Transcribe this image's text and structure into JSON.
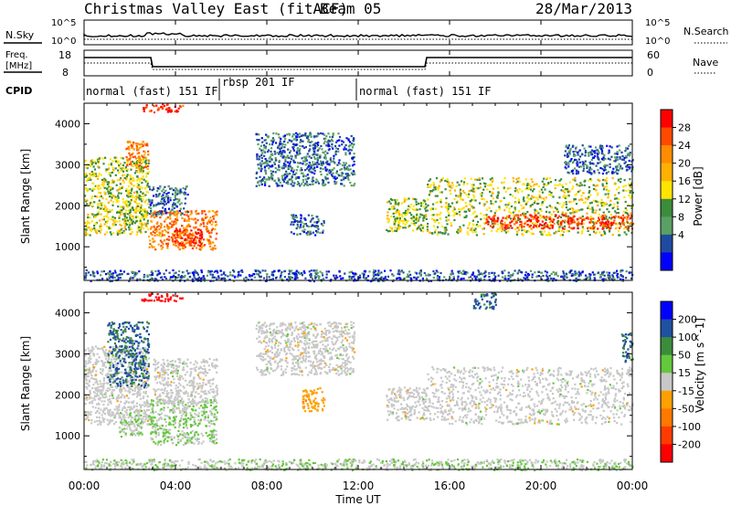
{
  "header": {
    "title": "Christmas Valley East (fitACF)",
    "beam": "Beam 05",
    "date": "28/Mar/2013"
  },
  "top_panels": {
    "nsky": {
      "label": "N.Sky",
      "ticks": [
        "10^5",
        "10^0"
      ]
    },
    "nsearch": {
      "label": "N.Search",
      "ticks": [
        "10^5",
        "10^0"
      ]
    },
    "freq": {
      "label_lines": [
        "Freq.",
        "[MHz]"
      ],
      "ticks": [
        "18",
        "8"
      ]
    },
    "nave": {
      "label": "Nave",
      "ticks": [
        "60",
        "0"
      ]
    },
    "cpid": {
      "label": "CPID",
      "segments": [
        {
          "name": "normal (fast) 151 IF",
          "start": 0.0,
          "end": 6.0
        },
        {
          "name": "rbsp 201 IF",
          "start": 6.0,
          "end": 12.0
        },
        {
          "name": "normal (fast) 151 IF",
          "start": 12.0,
          "end": 24.0
        }
      ]
    }
  },
  "power_colorbar": {
    "label": "Power [dB]",
    "ticks": [
      "28",
      "24",
      "20",
      "16",
      "12",
      "8",
      "4"
    ],
    "colors": [
      "#ff0000",
      "#ff4a00",
      "#ff8c00",
      "#ffb000",
      "#ffe400",
      "#3c8c3c",
      "#5aa064",
      "#1e4ba0",
      "#0000ff"
    ]
  },
  "velocity_colorbar": {
    "label": "Velocity [m s^-1]",
    "ticks": [
      "200",
      "100",
      "50",
      "15",
      "-15",
      "-50",
      "-100",
      "-200"
    ],
    "colors": [
      "#0000ff",
      "#2050a0",
      "#3c8c3c",
      "#64c83c",
      "#c8c8c8",
      "#ffa000",
      "#ff7800",
      "#ff3c00",
      "#ff0000"
    ]
  },
  "x_axis": {
    "label": "Time UT",
    "ticks": [
      "00:00",
      "04:00",
      "08:00",
      "12:00",
      "16:00",
      "20:00",
      "00:00"
    ]
  },
  "chart_data": [
    {
      "type": "heatmap",
      "panel": "power",
      "ylabel": "Slant Range [km]",
      "xlabel": "Time UT",
      "xlim": [
        0,
        24
      ],
      "ylim": [
        180,
        4500
      ],
      "yticks": [
        1000,
        2000,
        3000,
        4000
      ],
      "scale_label": "Power [dB]",
      "scale_range": [
        0,
        30
      ],
      "echo_regions": [
        {
          "t0": 0.0,
          "t1": 2.8,
          "r0": 1300,
          "r1": 3200,
          "value": 14
        },
        {
          "t0": 1.8,
          "t1": 2.8,
          "r0": 2900,
          "r1": 3600,
          "value": 22
        },
        {
          "t0": 2.5,
          "t1": 4.3,
          "r0": 4300,
          "r1": 4500,
          "value": 26
        },
        {
          "t0": 2.8,
          "t1": 5.8,
          "r0": 950,
          "r1": 1900,
          "value": 22
        },
        {
          "t0": 3.8,
          "t1": 5.2,
          "r0": 1050,
          "r1": 1450,
          "value": 27
        },
        {
          "t0": 2.8,
          "t1": 4.5,
          "r0": 1800,
          "r1": 2500,
          "value": 6
        },
        {
          "t0": 7.5,
          "t1": 11.8,
          "r0": 2500,
          "r1": 3800,
          "value": 6
        },
        {
          "t0": 9.0,
          "t1": 10.5,
          "r0": 1300,
          "r1": 1800,
          "value": 6
        },
        {
          "t0": 13.2,
          "t1": 15.0,
          "r0": 1400,
          "r1": 2200,
          "value": 14
        },
        {
          "t0": 15.0,
          "t1": 24.0,
          "r0": 1300,
          "r1": 2700,
          "value": 14
        },
        {
          "t0": 17.5,
          "t1": 24.0,
          "r0": 1450,
          "r1": 1800,
          "value": 26
        },
        {
          "t0": 21.0,
          "t1": 24.0,
          "r0": 2800,
          "r1": 3500,
          "value": 6
        },
        {
          "t0": 0.0,
          "t1": 24.0,
          "r0": 180,
          "r1": 450,
          "value": 5
        }
      ]
    },
    {
      "type": "heatmap",
      "panel": "velocity",
      "ylabel": "Slant Range [km]",
      "xlabel": "Time UT",
      "xlim": [
        0,
        24
      ],
      "ylim": [
        180,
        4500
      ],
      "yticks": [
        1000,
        2000,
        3000,
        4000
      ],
      "scale_label": "Velocity [m s^-1]",
      "scale_range": [
        -250,
        250
      ],
      "echo_regions": [
        {
          "t0": 0.0,
          "t1": 2.8,
          "r0": 1300,
          "r1": 3200,
          "value": 0
        },
        {
          "t0": 1.0,
          "t1": 2.8,
          "r0": 2200,
          "r1": 3800,
          "value": 150
        },
        {
          "t0": 1.5,
          "t1": 2.5,
          "r0": 1000,
          "r1": 1700,
          "value": 30
        },
        {
          "t0": 2.5,
          "t1": 4.3,
          "r0": 4300,
          "r1": 4500,
          "value": -250
        },
        {
          "t0": 2.8,
          "t1": 5.8,
          "r0": 800,
          "r1": 1900,
          "value": 30
        },
        {
          "t0": 3.0,
          "t1": 5.8,
          "r0": 1800,
          "r1": 2900,
          "value": 0
        },
        {
          "t0": 7.5,
          "t1": 11.8,
          "r0": 2500,
          "r1": 3800,
          "value": 0
        },
        {
          "t0": 9.5,
          "t1": 10.5,
          "r0": 1600,
          "r1": 2200,
          "value": -60
        },
        {
          "t0": 13.2,
          "t1": 15.0,
          "r0": 1400,
          "r1": 2200,
          "value": 0
        },
        {
          "t0": 15.0,
          "t1": 24.0,
          "r0": 1300,
          "r1": 2700,
          "value": 0
        },
        {
          "t0": 17.0,
          "t1": 18.0,
          "r0": 4100,
          "r1": 4500,
          "value": 150
        },
        {
          "t0": 23.5,
          "t1": 24.0,
          "r0": 2800,
          "r1": 3500,
          "value": 150
        },
        {
          "t0": 0.0,
          "t1": 24.0,
          "r0": 180,
          "r1": 450,
          "value": 20
        }
      ]
    }
  ]
}
